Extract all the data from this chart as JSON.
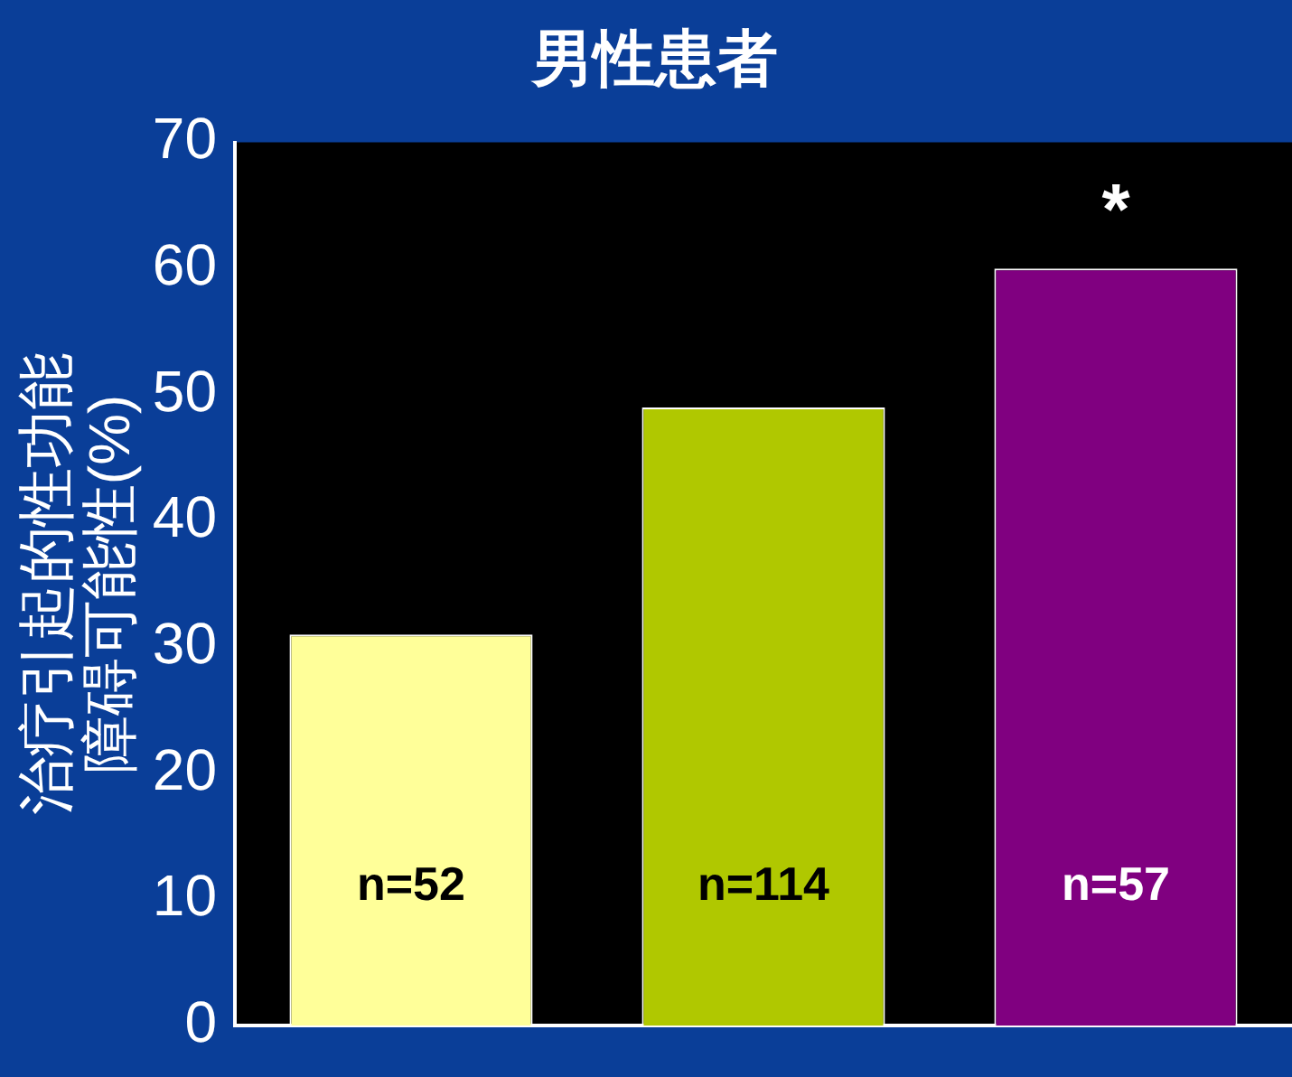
{
  "chart_data": {
    "type": "bar",
    "title": "男性患者",
    "ylabel": "治疗引起的性功能障碍可能性(%)",
    "categories": [
      null,
      null,
      null
    ],
    "values": [
      31,
      49,
      60
    ],
    "colors": [
      "#ffff99",
      "#b0c800",
      "#800080"
    ],
    "ylim": [
      0,
      70
    ],
    "yticks": [
      0,
      10,
      20,
      30,
      40,
      50,
      60,
      70
    ],
    "grid": false,
    "legend": false,
    "annotations": [
      "n=52",
      "n=114",
      "n=57",
      "*"
    ]
  }
}
